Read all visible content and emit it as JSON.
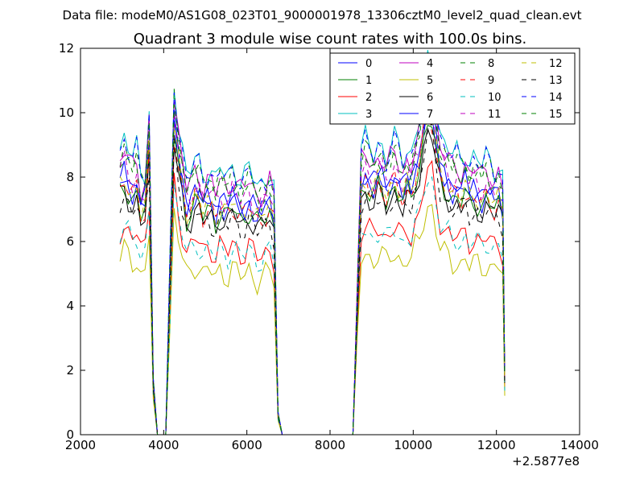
{
  "suptitle": "Data file: modeM0/AS1G08_023T01_9000001978_13306cztM0_level2_quad_clean.evt",
  "chart_data": {
    "type": "line",
    "title": "Quadrant 3 module wise count rates with 100.0s bins.",
    "xlabel": "",
    "ylabel": "",
    "xlim": [
      2000,
      14000
    ],
    "ylim": [
      0,
      12
    ],
    "x_offset_label": "+2.5877e8",
    "xticks": [
      "2000",
      "4000",
      "6000",
      "8000",
      "10000",
      "12000",
      "14000"
    ],
    "yticks": [
      "0",
      "2",
      "4",
      "6",
      "8",
      "10",
      "12"
    ],
    "grid": false,
    "legend": {
      "placement": "top-right",
      "columns": 4
    },
    "profile": {
      "x": [
        2950,
        3050,
        3150,
        3250,
        3350,
        3450,
        3550,
        3650,
        3750,
        3850,
        3950,
        4050,
        4150,
        4250,
        4350,
        4450,
        4550,
        4650,
        4750,
        4850,
        4950,
        5050,
        5150,
        5250,
        5350,
        5450,
        5550,
        5650,
        5750,
        5850,
        5950,
        6050,
        6150,
        6250,
        6350,
        6450,
        6550,
        6650,
        6750,
        6850,
        6950,
        7050,
        8550,
        8650,
        8750,
        8850,
        8950,
        9050,
        9150,
        9250,
        9350,
        9450,
        9550,
        9650,
        9750,
        9850,
        9950,
        10050,
        10150,
        10250,
        10350,
        10450,
        10550,
        10650,
        10750,
        10850,
        10950,
        11050,
        11150,
        11250,
        11350,
        11450,
        11550,
        11650,
        11750,
        11850,
        11950,
        12050,
        12150,
        12200
      ],
      "shape": [
        1.0,
        1.04,
        1.0,
        0.97,
        1.0,
        0.9,
        0.92,
        1.15,
        0.2,
        0,
        0,
        0,
        0.6,
        1.24,
        1.1,
        1.0,
        0.9,
        0.92,
        0.96,
        0.95,
        0.9,
        0.93,
        0.92,
        0.88,
        0.93,
        0.91,
        0.9,
        0.94,
        0.92,
        0.89,
        0.9,
        0.93,
        0.9,
        0.87,
        0.88,
        0.9,
        0.92,
        0.86,
        0.08,
        0,
        0,
        0,
        0,
        0.5,
        1.0,
        1.03,
        1.0,
        0.98,
        1.02,
        1.01,
        0.97,
        1.0,
        1.03,
        1.0,
        0.96,
        1.0,
        0.98,
        1.05,
        1.1,
        1.22,
        1.3,
        1.28,
        1.15,
        1.05,
        1.02,
        1.0,
        0.97,
        0.98,
        0.96,
        0.99,
        0.95,
        0.97,
        0.96,
        0.94,
        0.97,
        0.95,
        0.93,
        0.95,
        0.9,
        0.22
      ]
    },
    "series": [
      {
        "name": "0",
        "color": "#0000ff",
        "dash": "solid",
        "level": 7.8
      },
      {
        "name": "1",
        "color": "#008000",
        "dash": "solid",
        "level": 7.5
      },
      {
        "name": "2",
        "color": "#ff0000",
        "dash": "solid",
        "level": 6.3
      },
      {
        "name": "3",
        "color": "#00bfbf",
        "dash": "solid",
        "level": 8.9
      },
      {
        "name": "4",
        "color": "#bf00bf",
        "dash": "solid",
        "level": 8.5
      },
      {
        "name": "5",
        "color": "#bfbf00",
        "dash": "solid",
        "level": 5.5
      },
      {
        "name": "6",
        "color": "#000000",
        "dash": "solid",
        "level": 7.3
      },
      {
        "name": "7",
        "color": "#0000ff",
        "dash": "solid",
        "level": 7.9
      },
      {
        "name": "8",
        "color": "#008000",
        "dash": "dashed",
        "level": 8.6
      },
      {
        "name": "9",
        "color": "#ff0000",
        "dash": "dashed",
        "level": 7.6
      },
      {
        "name": "10",
        "color": "#00bfbf",
        "dash": "dashed",
        "level": 6.2
      },
      {
        "name": "11",
        "color": "#bf00bf",
        "dash": "dashed",
        "level": 8.1
      },
      {
        "name": "12",
        "color": "#bfbf00",
        "dash": "dashed",
        "level": 7.7
      },
      {
        "name": "13",
        "color": "#000000",
        "dash": "dashed",
        "level": 7.2
      },
      {
        "name": "14",
        "color": "#0000ff",
        "dash": "dashed",
        "level": 8.8
      },
      {
        "name": "15",
        "color": "#008000",
        "dash": "dashed",
        "level": 8.4
      }
    ]
  }
}
